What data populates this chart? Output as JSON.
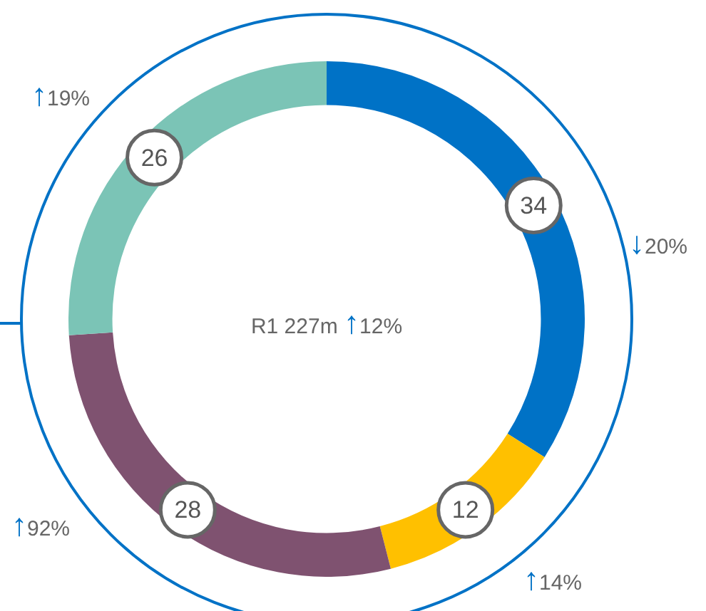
{
  "chart_data": {
    "type": "donut",
    "title": "R1 227m ↑12%",
    "categories": [
      null,
      null,
      null,
      null
    ],
    "values": [
      34,
      12,
      28,
      26
    ],
    "colors": [
      "#0072c6",
      "#ffc000",
      "#7f5270",
      "#7bc4b6"
    ],
    "data_labels": true,
    "legend": false,
    "annotations": [
      "↓20%",
      "↑14%",
      "↑92%",
      "↑19%"
    ]
  }
}
